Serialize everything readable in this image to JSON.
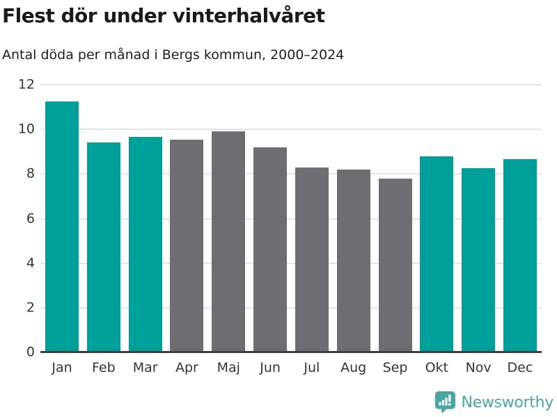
{
  "header": {
    "title": "Flest dör under vinterhalvåret",
    "subtitle": "Antal döda per månad i Bergs kommun, 2000–2024"
  },
  "chart_data": {
    "type": "bar",
    "title": "Flest dör under vinterhalvåret",
    "subtitle": "Antal döda per månad i Bergs kommun, 2000–2024",
    "categories": [
      "Jan",
      "Feb",
      "Mar",
      "Apr",
      "Maj",
      "Jun",
      "Jul",
      "Aug",
      "Sep",
      "Okt",
      "Nov",
      "Dec"
    ],
    "values": [
      11.25,
      9.4,
      9.65,
      9.55,
      9.9,
      9.2,
      8.3,
      8.2,
      7.8,
      8.8,
      8.25,
      8.65
    ],
    "highlighted": [
      true,
      true,
      true,
      false,
      false,
      false,
      false,
      false,
      false,
      true,
      true,
      true
    ],
    "colors": {
      "highlight": "#00a09a",
      "muted": "#6e6d72",
      "gridline": "#e4e4e4",
      "axis_line": "#3f3f3f",
      "tick_text": "#333333"
    },
    "xlabel": "",
    "ylabel": "",
    "ylim": [
      0,
      12
    ],
    "yticks": [
      0,
      2,
      4,
      6,
      8,
      10,
      12
    ],
    "grid": true,
    "legend": false
  },
  "footer": {
    "brand": "Newsworthy",
    "brand_color": "#4aa5a1",
    "icon": "newsworthy-speech-bubble-bar-chart-icon"
  }
}
